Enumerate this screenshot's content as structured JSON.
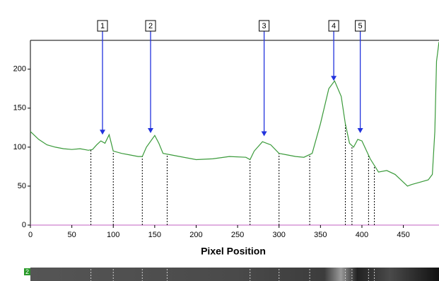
{
  "chart_data": {
    "type": "line",
    "x_label": "Pixel Position",
    "x": [
      0,
      10,
      20,
      30,
      40,
      50,
      60,
      70,
      75,
      80,
      85,
      90,
      95,
      100,
      110,
      120,
      130,
      135,
      140,
      150,
      155,
      160,
      170,
      180,
      200,
      220,
      240,
      260,
      265,
      270,
      280,
      290,
      300,
      310,
      320,
      330,
      340,
      350,
      360,
      367,
      375,
      380,
      385,
      390,
      395,
      400,
      410,
      420,
      430,
      440,
      450,
      455,
      460,
      470,
      480,
      485,
      488,
      490,
      493
    ],
    "series": [
      {
        "color": "#3a9a3a",
        "values": [
          120,
          110,
          103,
          100,
          98,
          97,
          98,
          96,
          97,
          103,
          108,
          105,
          116,
          95,
          92,
          90,
          88,
          88,
          100,
          115,
          105,
          92,
          90,
          88,
          84,
          85,
          88,
          87,
          84,
          95,
          107,
          103,
          92,
          90,
          88,
          87,
          92,
          130,
          175,
          185,
          165,
          130,
          105,
          100,
          110,
          108,
          85,
          68,
          70,
          65,
          55,
          50,
          52,
          55,
          58,
          65,
          120,
          210,
          235
        ]
      }
    ],
    "xlim": [
      0,
      493
    ],
    "ylim": [
      0,
      237
    ],
    "xticks": [
      0,
      50,
      100,
      150,
      200,
      250,
      300,
      350,
      400,
      450
    ],
    "yticks": [
      0,
      50,
      100,
      150,
      200
    ],
    "boundaries": [
      73,
      100,
      135,
      165,
      265,
      300,
      337,
      380,
      388,
      408,
      415
    ],
    "peaks": [
      {
        "label": "1",
        "x": 87,
        "y": 116
      },
      {
        "label": "2",
        "x": 145,
        "y": 118
      },
      {
        "label": "3",
        "x": 282,
        "y": 114
      },
      {
        "label": "4",
        "x": 366,
        "y": 185
      },
      {
        "label": "5",
        "x": 398,
        "y": 118
      }
    ],
    "strip_label": "2"
  }
}
